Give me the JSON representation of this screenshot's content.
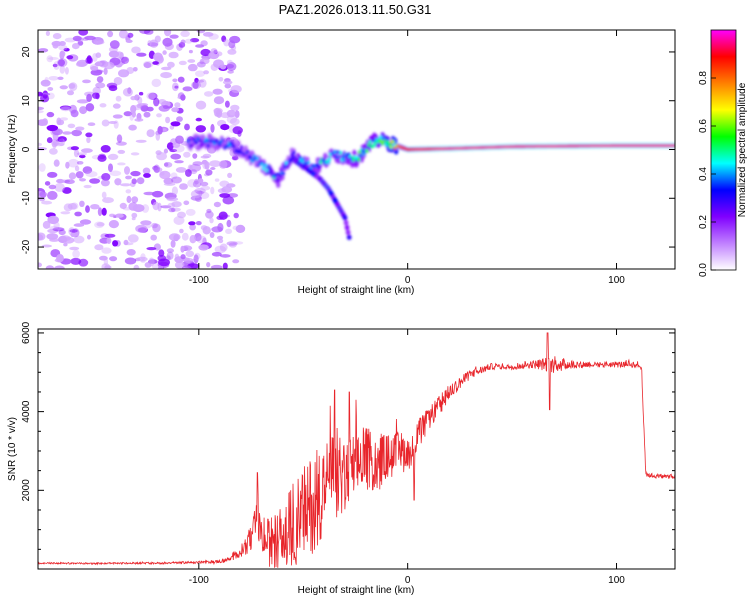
{
  "title": "PAZ1.2026.013.11.50.G31",
  "chart_data": [
    {
      "type": "heatmap",
      "xlabel": "Height of straight line (km)",
      "ylabel": "Frequency (Hz)",
      "xlim": [
        -177,
        128
      ],
      "ylim": [
        -24.5,
        24.5
      ],
      "xticks": [
        -100,
        0,
        100
      ],
      "yticks": [
        -20,
        -10,
        0,
        10,
        20
      ],
      "xtick_labels": [
        "-100",
        "0",
        "100"
      ],
      "ytick_labels": [
        "-20",
        "-10",
        "0",
        "10",
        "20"
      ],
      "colorbar": {
        "label": "Normalized spectral amplitude",
        "range": [
          0,
          1
        ],
        "ticks": [
          0.0,
          0.2,
          0.4,
          0.6,
          0.8
        ],
        "tick_labels": [
          "0.0",
          "0.2",
          "0.4",
          "0.6",
          "0.8"
        ],
        "colors": [
          "#ffffff",
          "#c080ff",
          "#8000ff",
          "#0000ff",
          "#00ffff",
          "#00ff00",
          "#ffff00",
          "#ff8000",
          "#ff0000",
          "#ff00ff"
        ]
      },
      "ridge": {
        "x": [
          -105,
          -90,
          -80,
          -70,
          -62,
          -55,
          -45,
          -35,
          -25,
          -15,
          -10,
          0,
          20,
          50,
          100,
          128
        ],
        "y": [
          1.5,
          1.5,
          0,
          -3,
          -6,
          -1,
          -4,
          -1,
          -2,
          2,
          1.5,
          0,
          0.2,
          0.6,
          0.8,
          0.8
        ],
        "level": [
          0.3,
          0.35,
          0.3,
          0.35,
          0.4,
          0.3,
          0.4,
          0.4,
          0.45,
          0.5,
          0.6,
          0.9,
          0.95,
          0.95,
          0.95,
          0.95
        ]
      },
      "branch": {
        "x": [
          -55,
          -48,
          -42,
          -38,
          -34,
          -30,
          -28
        ],
        "y": [
          -2,
          -4,
          -6,
          -8,
          -11,
          -14,
          -18
        ]
      },
      "noise_region": {
        "x_from": -177,
        "x_to": -80,
        "y_from": -24.5,
        "y_to": 24.5,
        "level": 0.2
      }
    },
    {
      "type": "line",
      "xlabel": "Height of straight line (km)",
      "ylabel": "SNR (10 * v/v)",
      "xlim": [
        -177,
        128
      ],
      "ylim": [
        0,
        6100
      ],
      "xticks": [
        -100,
        0,
        100
      ],
      "yticks": [
        2000,
        4000,
        6000
      ],
      "xtick_labels": [
        "-100",
        "0",
        "100"
      ],
      "ytick_labels": [
        "2000",
        "4000",
        "6000"
      ],
      "color": "#e8252b",
      "x": [
        -177,
        -150,
        -120,
        -100,
        -90,
        -85,
        -80,
        -75,
        -72,
        -70,
        -65,
        -60,
        -55,
        -50,
        -45,
        -40,
        -35,
        -30,
        -25,
        -20,
        -15,
        -10,
        0,
        10,
        20,
        30,
        40,
        50,
        60,
        70,
        80,
        90,
        100,
        110,
        112,
        114,
        120,
        128
      ],
      "y": [
        150,
        140,
        150,
        170,
        190,
        250,
        450,
        750,
        1300,
        800,
        650,
        750,
        1100,
        1400,
        1700,
        2100,
        2400,
        2300,
        2600,
        2800,
        2700,
        2850,
        3000,
        3800,
        4500,
        4950,
        5150,
        5150,
        5200,
        5200,
        5200,
        5200,
        5200,
        5200,
        5100,
        2400,
        2350,
        2350
      ],
      "noise": [
        20,
        20,
        25,
        30,
        40,
        60,
        150,
        350,
        500,
        400,
        700,
        900,
        1100,
        1200,
        1300,
        1200,
        1100,
        1000,
        900,
        850,
        700,
        600,
        500,
        300,
        200,
        120,
        80,
        80,
        100,
        220,
        100,
        80,
        80,
        80,
        80,
        60,
        60,
        60
      ],
      "spikes": [
        {
          "x": -72,
          "y": 2450
        },
        {
          "x": -35,
          "y": 4550
        },
        {
          "x": -28,
          "y": 4500
        },
        {
          "x": 67,
          "y": 6000
        },
        {
          "x": 68,
          "y": 4050
        },
        {
          "x": 3,
          "y": 1750
        }
      ]
    }
  ]
}
